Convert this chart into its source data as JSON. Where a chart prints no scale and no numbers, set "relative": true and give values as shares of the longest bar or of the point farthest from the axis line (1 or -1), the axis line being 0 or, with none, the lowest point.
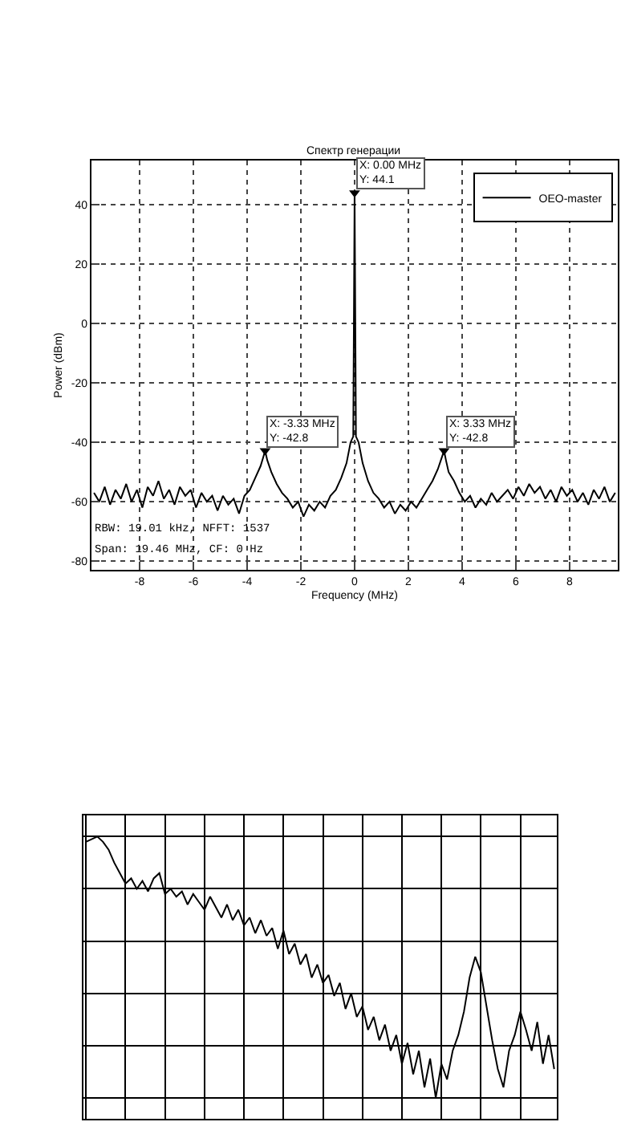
{
  "chart_data": [
    {
      "type": "line",
      "title": "Спектр генерации",
      "xlabel": "Frequency (MHz)",
      "ylabel": "Power (dBm)",
      "x": [
        -9.7,
        -9.5,
        -9.3,
        -9.1,
        -8.9,
        -8.7,
        -8.5,
        -8.3,
        -8.1,
        -7.9,
        -7.7,
        -7.5,
        -7.3,
        -7.1,
        -6.9,
        -6.7,
        -6.5,
        -6.3,
        -6.1,
        -5.9,
        -5.7,
        -5.5,
        -5.3,
        -5.1,
        -4.9,
        -4.7,
        -4.5,
        -4.3,
        -4.1,
        -3.9,
        -3.7,
        -3.5,
        -3.4,
        -3.33,
        -3.25,
        -3.1,
        -2.9,
        -2.7,
        -2.5,
        -2.3,
        -2.1,
        -1.9,
        -1.7,
        -1.5,
        -1.3,
        -1.1,
        -0.9,
        -0.7,
        -0.5,
        -0.3,
        -0.15,
        -0.05,
        0,
        0.05,
        0.15,
        0.3,
        0.5,
        0.7,
        0.9,
        1.1,
        1.3,
        1.5,
        1.7,
        1.9,
        2.1,
        2.3,
        2.5,
        2.7,
        2.9,
        3.1,
        3.25,
        3.33,
        3.4,
        3.5,
        3.7,
        3.9,
        4.1,
        4.3,
        4.5,
        4.7,
        4.9,
        5.1,
        5.3,
        5.5,
        5.7,
        5.9,
        6.1,
        6.3,
        6.5,
        6.7,
        6.9,
        7.1,
        7.3,
        7.5,
        7.7,
        7.9,
        8.1,
        8.3,
        8.5,
        8.7,
        8.9,
        9.1,
        9.3,
        9.5,
        9.7
      ],
      "series": [
        {
          "name": "OEO-master",
          "color": "#000000",
          "values": [
            -57,
            -60,
            -55,
            -61,
            -56,
            -59,
            -54,
            -60,
            -56,
            -62,
            -55,
            -58,
            -53,
            -59,
            -56,
            -61,
            -55,
            -58,
            -56,
            -62,
            -57,
            -60,
            -58,
            -63,
            -58,
            -61,
            -59,
            -64,
            -58,
            -56,
            -52,
            -48,
            -45,
            -42.8,
            -46,
            -50,
            -54,
            -57,
            -59,
            -62,
            -60,
            -65,
            -61,
            -63,
            -60,
            -62,
            -58,
            -56,
            -52,
            -47,
            -40,
            -38,
            44.1,
            -38,
            -40,
            -47,
            -53,
            -57,
            -59,
            -62,
            -60,
            -64,
            -61,
            -63,
            -60,
            -62,
            -59,
            -56,
            -53,
            -49,
            -45,
            -42.8,
            -46,
            -50,
            -53,
            -57,
            -60,
            -58,
            -62,
            -59,
            -61,
            -57,
            -60,
            -58,
            -56,
            -59,
            -55,
            -58,
            -54,
            -57,
            -55,
            -59,
            -56,
            -60,
            -55,
            -58,
            -56,
            -60,
            -57,
            -61,
            -56,
            -59,
            -55,
            -60,
            -57
          ]
        }
      ],
      "xlim": [
        -9.8,
        9.8
      ],
      "xticks": [
        -8,
        -6,
        -4,
        -2,
        0,
        2,
        4,
        6,
        8
      ],
      "ylim": [
        -83,
        55
      ],
      "yticks": [
        -80,
        -60,
        -40,
        -20,
        0,
        20,
        40
      ],
      "grid": true,
      "legend": "top right",
      "line_style": "solid",
      "marker": "none",
      "annotations": [
        {
          "text": "X: 0.00 MHz\nY: 44.1",
          "x": 0,
          "y": 44.1
        },
        {
          "text": "X: -3.33 MHz\nY: -42.8",
          "x": -3.33,
          "y": -42.8
        },
        {
          "text": "X: 3.33 MHz\nY: -42.8",
          "x": 3.33,
          "y": -42.8
        },
        "RBW: 19.01 kHz, NFFT: 1537",
        "Span: 19.46 MHz, CF: 0 Hz"
      ]
    },
    {
      "type": "line",
      "relative": true,
      "tick_labels": false,
      "grid": true,
      "line_style": "solid",
      "marker": "none",
      "categories": [
        null,
        null,
        null,
        null,
        null,
        null,
        null,
        null,
        null,
        null,
        null,
        null,
        null,
        null,
        null,
        null,
        null,
        null,
        null,
        null,
        null,
        null,
        null,
        null,
        null,
        null,
        null,
        null,
        null,
        null,
        null,
        null,
        null,
        null,
        null,
        null,
        null,
        null,
        null,
        null,
        null,
        null,
        null,
        null,
        null,
        null,
        null,
        null,
        null,
        null,
        null,
        null,
        null,
        null,
        null,
        null,
        null,
        null,
        null,
        null,
        null,
        null,
        null,
        null,
        null,
        null,
        null,
        null,
        null,
        null,
        null,
        null,
        null,
        null,
        null,
        null,
        null,
        null,
        null,
        null,
        null,
        null,
        null,
        null
      ],
      "series": [
        {
          "color": "#000000",
          "values": [
            0.98,
            0.99,
            1,
            0.98,
            0.95,
            0.9,
            0.86,
            0.82,
            0.84,
            0.8,
            0.83,
            0.79,
            0.84,
            0.86,
            0.78,
            0.8,
            0.77,
            0.79,
            0.74,
            0.78,
            0.75,
            0.72,
            0.77,
            0.73,
            0.69,
            0.74,
            0.68,
            0.72,
            0.66,
            0.69,
            0.63,
            0.68,
            0.62,
            0.65,
            0.57,
            0.64,
            0.55,
            0.59,
            0.51,
            0.55,
            0.46,
            0.51,
            0.44,
            0.47,
            0.39,
            0.44,
            0.34,
            0.4,
            0.31,
            0.35,
            0.26,
            0.31,
            0.22,
            0.28,
            0.18,
            0.24,
            0.13,
            0.21,
            0.09,
            0.18,
            0.04,
            0.15,
            0,
            0.13,
            0.07,
            0.18,
            0.24,
            0.33,
            0.46,
            0.54,
            0.48,
            0.35,
            0.22,
            0.11,
            0.04,
            0.18,
            0.24,
            0.33,
            0.26,
            0.18,
            0.29,
            0.13,
            0.24,
            0.11
          ]
        }
      ]
    }
  ]
}
